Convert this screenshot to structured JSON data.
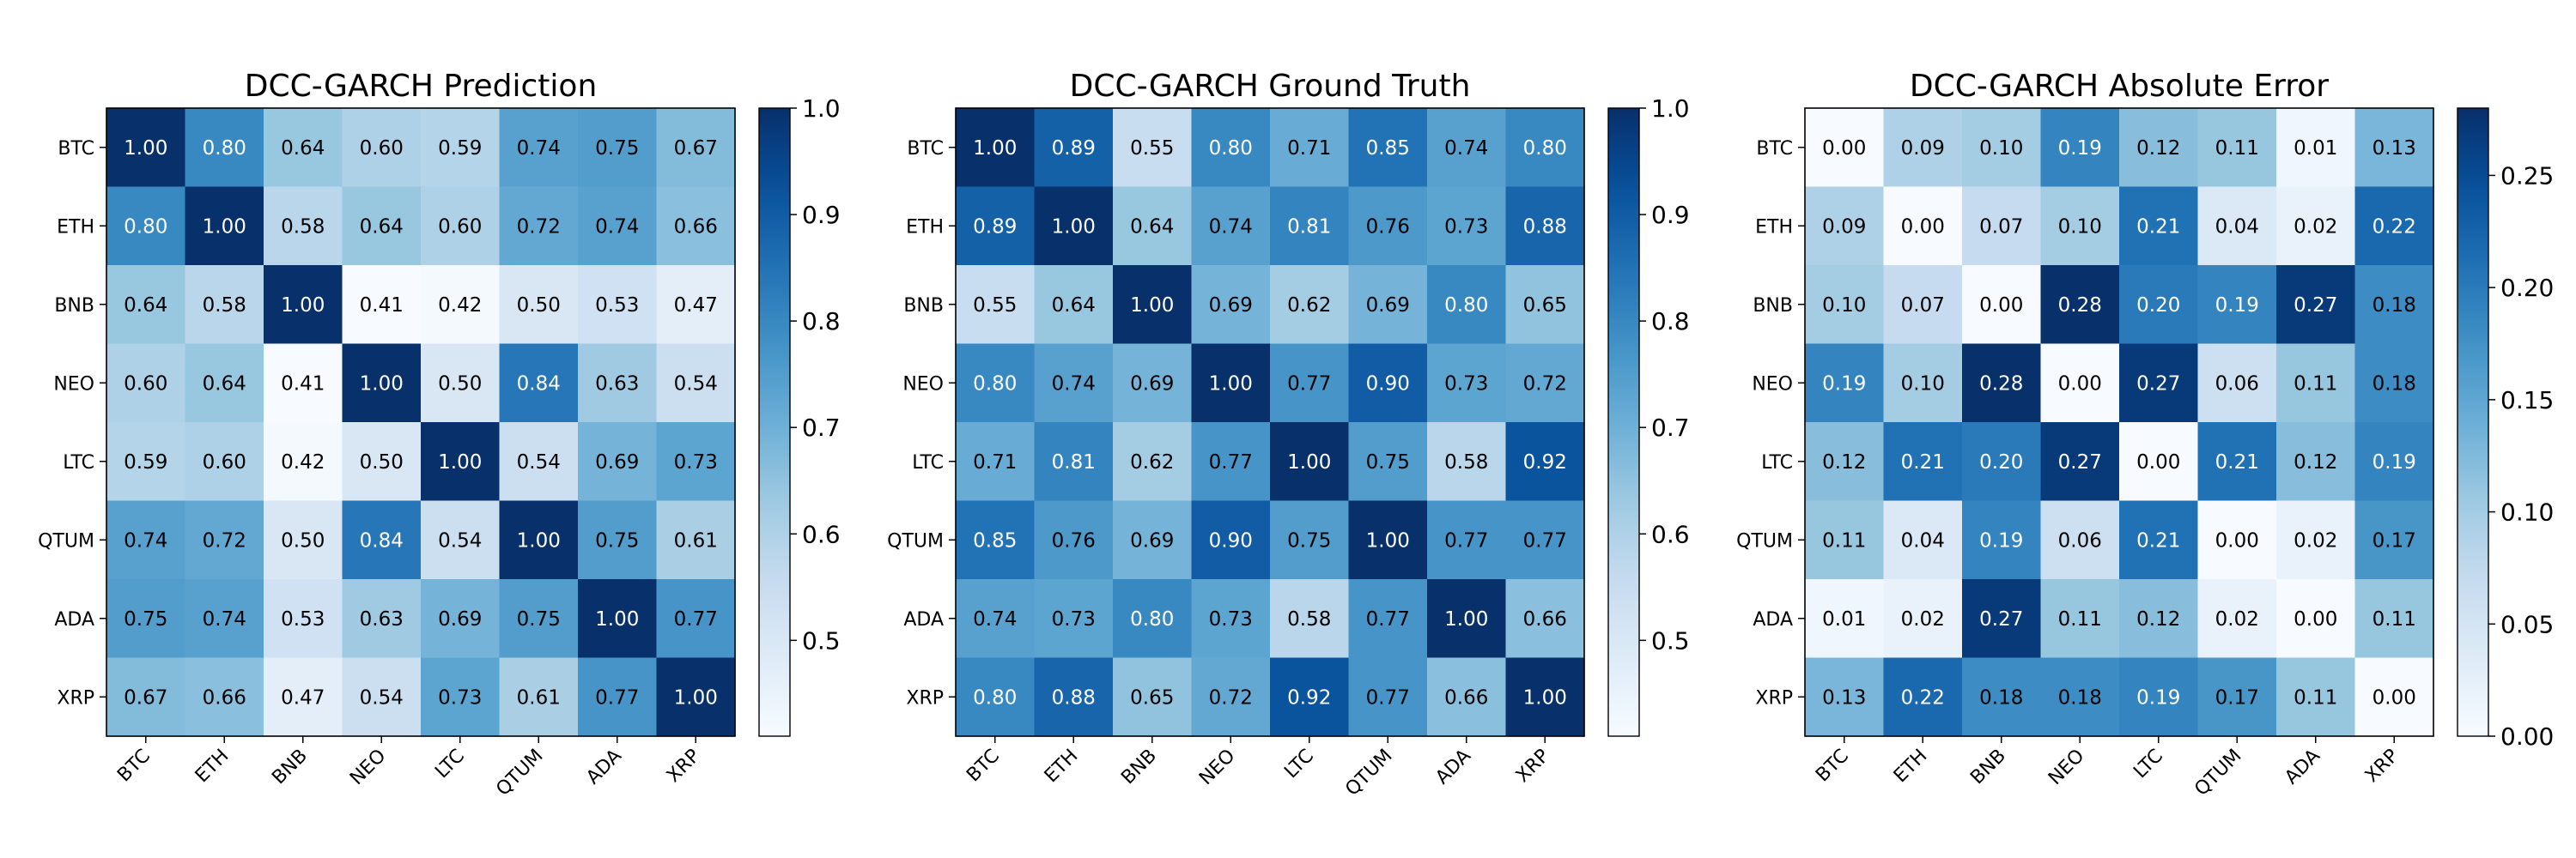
{
  "chart_data": [
    {
      "type": "heatmap",
      "title": "DCC-GARCH Prediction",
      "xlabel": "",
      "ylabel": "",
      "x": [
        "BTC",
        "ETH",
        "BNB",
        "NEO",
        "LTC",
        "QTUM",
        "ADA",
        "XRP"
      ],
      "y": [
        "BTC",
        "ETH",
        "BNB",
        "NEO",
        "LTC",
        "QTUM",
        "ADA",
        "XRP"
      ],
      "values": [
        [
          1.0,
          0.8,
          0.64,
          0.6,
          0.59,
          0.74,
          0.75,
          0.67
        ],
        [
          0.8,
          1.0,
          0.58,
          0.64,
          0.6,
          0.72,
          0.74,
          0.66
        ],
        [
          0.64,
          0.58,
          1.0,
          0.41,
          0.42,
          0.5,
          0.53,
          0.47
        ],
        [
          0.6,
          0.64,
          0.41,
          1.0,
          0.5,
          0.84,
          0.63,
          0.54
        ],
        [
          0.59,
          0.6,
          0.42,
          0.5,
          1.0,
          0.54,
          0.69,
          0.73
        ],
        [
          0.74,
          0.72,
          0.5,
          0.84,
          0.54,
          1.0,
          0.75,
          0.61
        ],
        [
          0.75,
          0.74,
          0.53,
          0.63,
          0.69,
          0.75,
          1.0,
          0.77
        ],
        [
          0.67,
          0.66,
          0.47,
          0.54,
          0.73,
          0.61,
          0.77,
          1.0
        ]
      ],
      "colormap": "Blues",
      "vmin": 0.41,
      "vmax": 1.0,
      "colorbar_ticks": [
        "0.5",
        "0.6",
        "0.7",
        "0.8",
        "0.9",
        "1.0"
      ]
    },
    {
      "type": "heatmap",
      "title": "DCC-GARCH Ground Truth",
      "xlabel": "",
      "ylabel": "",
      "x": [
        "BTC",
        "ETH",
        "BNB",
        "NEO",
        "LTC",
        "QTUM",
        "ADA",
        "XRP"
      ],
      "y": [
        "BTC",
        "ETH",
        "BNB",
        "NEO",
        "LTC",
        "QTUM",
        "ADA",
        "XRP"
      ],
      "values": [
        [
          1.0,
          0.89,
          0.55,
          0.8,
          0.71,
          0.85,
          0.74,
          0.8
        ],
        [
          0.89,
          1.0,
          0.64,
          0.74,
          0.81,
          0.76,
          0.73,
          0.88
        ],
        [
          0.55,
          0.64,
          1.0,
          0.69,
          0.62,
          0.69,
          0.8,
          0.65
        ],
        [
          0.8,
          0.74,
          0.69,
          1.0,
          0.77,
          0.9,
          0.73,
          0.72
        ],
        [
          0.71,
          0.81,
          0.62,
          0.77,
          1.0,
          0.75,
          0.58,
          0.92
        ],
        [
          0.85,
          0.76,
          0.69,
          0.9,
          0.75,
          1.0,
          0.77,
          0.77
        ],
        [
          0.74,
          0.73,
          0.8,
          0.73,
          0.58,
          0.77,
          1.0,
          0.66
        ],
        [
          0.8,
          0.88,
          0.65,
          0.72,
          0.92,
          0.77,
          0.66,
          1.0
        ]
      ],
      "colormap": "Blues",
      "vmin": 0.41,
      "vmax": 1.0,
      "colorbar_ticks": [
        "0.5",
        "0.6",
        "0.7",
        "0.8",
        "0.9",
        "1.0"
      ]
    },
    {
      "type": "heatmap",
      "title": "DCC-GARCH Absolute Error",
      "xlabel": "",
      "ylabel": "",
      "x": [
        "BTC",
        "ETH",
        "BNB",
        "NEO",
        "LTC",
        "QTUM",
        "ADA",
        "XRP"
      ],
      "y": [
        "BTC",
        "ETH",
        "BNB",
        "NEO",
        "LTC",
        "QTUM",
        "ADA",
        "XRP"
      ],
      "values": [
        [
          0.0,
          0.09,
          0.1,
          0.19,
          0.12,
          0.11,
          0.01,
          0.13
        ],
        [
          0.09,
          0.0,
          0.07,
          0.1,
          0.21,
          0.04,
          0.02,
          0.22
        ],
        [
          0.1,
          0.07,
          0.0,
          0.28,
          0.2,
          0.19,
          0.27,
          0.18
        ],
        [
          0.19,
          0.1,
          0.28,
          0.0,
          0.27,
          0.06,
          0.11,
          0.18
        ],
        [
          0.12,
          0.21,
          0.2,
          0.27,
          0.0,
          0.21,
          0.12,
          0.19
        ],
        [
          0.11,
          0.04,
          0.19,
          0.06,
          0.21,
          0.0,
          0.02,
          0.17
        ],
        [
          0.01,
          0.02,
          0.27,
          0.11,
          0.12,
          0.02,
          0.0,
          0.11
        ],
        [
          0.13,
          0.22,
          0.18,
          0.18,
          0.19,
          0.17,
          0.11,
          0.0
        ]
      ],
      "colormap": "Blues",
      "vmin": 0.0,
      "vmax": 0.28,
      "colorbar_ticks": [
        "0.00",
        "0.05",
        "0.10",
        "0.15",
        "0.20",
        "0.25"
      ]
    }
  ]
}
